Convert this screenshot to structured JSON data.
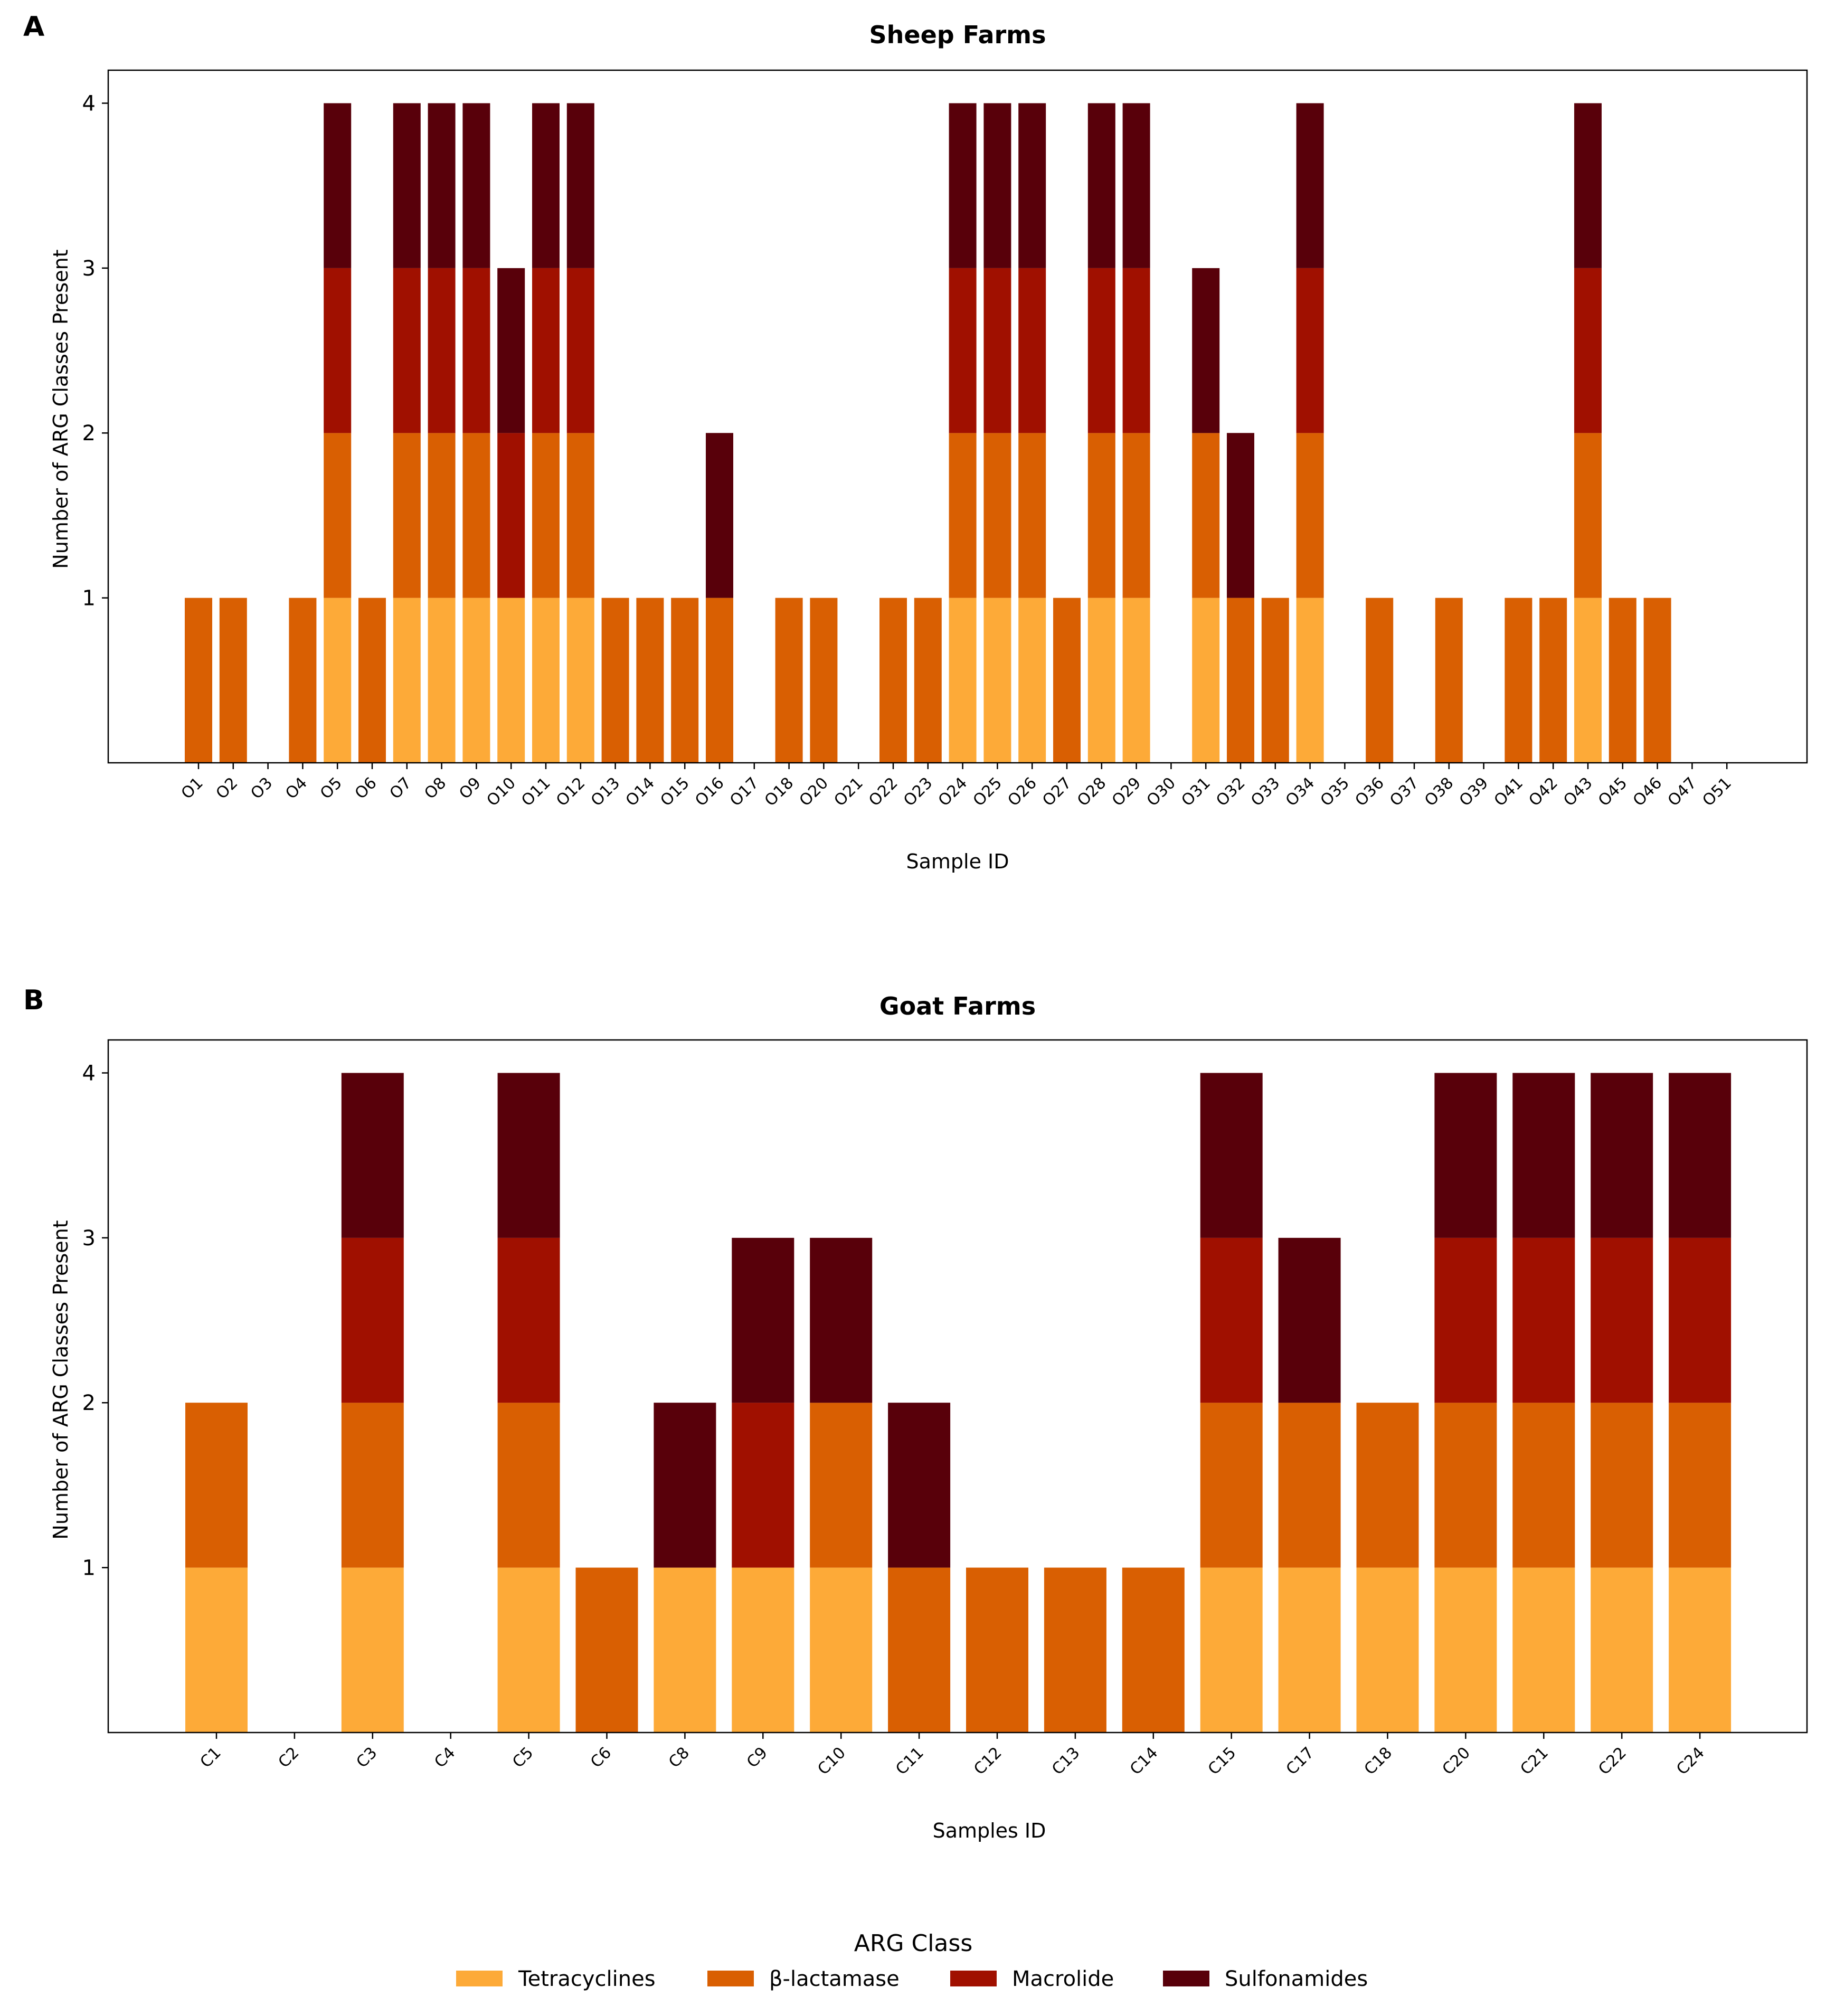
{
  "colors": {
    "Tetracyclines": "#fdaa38",
    "β-lactamase": "#d95f02",
    "Macrolide": "#a01000",
    "Sulfonamides": "#58000a"
  },
  "legend": {
    "title": "ARG Class",
    "entries": [
      "Tetracyclines",
      "β-lactamase",
      "Macrolide",
      "Sulfonamides"
    ],
    "placement": "bottom-center"
  },
  "panels": [
    {
      "letter": "A",
      "title": "Sheep Farms"
    },
    {
      "letter": "B",
      "title": "Goat Farms"
    }
  ],
  "chart_data": [
    {
      "type": "bar",
      "stacked": true,
      "title": "Sheep Farms",
      "xlabel": "Sample ID",
      "ylabel": "Number of ARG Classes Present",
      "ylim": [
        0,
        4.2
      ],
      "yticks": [
        1,
        2,
        3,
        4
      ],
      "grid": false,
      "categories": [
        "O1",
        "O2",
        "O3",
        "O4",
        "O5",
        "O6",
        "O7",
        "O8",
        "O9",
        "O10",
        "O11",
        "O12",
        "O13",
        "O14",
        "O15",
        "O16",
        "O17",
        "O18",
        "O20",
        "O21",
        "O22",
        "O23",
        "O24",
        "O25",
        "O26",
        "O27",
        "O28",
        "O29",
        "O30",
        "O31",
        "O32",
        "O33",
        "O34",
        "O35",
        "O36",
        "O37",
        "O38",
        "O39",
        "O41",
        "O42",
        "O43",
        "O45",
        "O46",
        "O47",
        "O51"
      ],
      "series": [
        {
          "name": "Tetracyclines",
          "values": [
            0,
            0,
            0,
            0,
            1,
            0,
            1,
            1,
            1,
            1,
            1,
            1,
            0,
            0,
            0,
            0,
            0,
            0,
            0,
            0,
            0,
            0,
            1,
            1,
            1,
            0,
            1,
            1,
            0,
            1,
            0,
            0,
            1,
            0,
            0,
            0,
            0,
            0,
            0,
            0,
            1,
            0,
            0,
            0,
            0
          ]
        },
        {
          "name": "β-lactamase",
          "values": [
            1,
            1,
            0,
            1,
            1,
            1,
            1,
            1,
            1,
            0,
            1,
            1,
            1,
            1,
            1,
            1,
            0,
            1,
            1,
            0,
            1,
            1,
            1,
            1,
            1,
            1,
            1,
            1,
            0,
            1,
            1,
            1,
            1,
            0,
            1,
            0,
            1,
            0,
            1,
            1,
            1,
            1,
            1,
            0,
            0
          ]
        },
        {
          "name": "Macrolide",
          "values": [
            0,
            0,
            0,
            0,
            1,
            0,
            1,
            1,
            1,
            1,
            1,
            1,
            0,
            0,
            0,
            0,
            0,
            0,
            0,
            0,
            0,
            0,
            1,
            1,
            1,
            0,
            1,
            1,
            0,
            0,
            0,
            0,
            1,
            0,
            0,
            0,
            0,
            0,
            0,
            0,
            1,
            0,
            0,
            0,
            0
          ]
        },
        {
          "name": "Sulfonamides",
          "values": [
            0,
            0,
            0,
            0,
            1,
            0,
            1,
            1,
            1,
            1,
            1,
            1,
            0,
            0,
            0,
            1,
            0,
            0,
            0,
            0,
            0,
            0,
            1,
            1,
            1,
            0,
            1,
            1,
            0,
            1,
            1,
            0,
            1,
            0,
            0,
            0,
            0,
            0,
            0,
            0,
            1,
            0,
            0,
            0,
            0
          ]
        }
      ]
    },
    {
      "type": "bar",
      "stacked": true,
      "title": "Goat Farms",
      "xlabel": "Samples ID",
      "ylabel": "Number of ARG Classes Present",
      "ylim": [
        0,
        4.2
      ],
      "yticks": [
        1,
        2,
        3,
        4
      ],
      "grid": false,
      "categories": [
        "C1",
        "C2",
        "C3",
        "C4",
        "C5",
        "C6",
        "C8",
        "C9",
        "C10",
        "C11",
        "C12",
        "C13",
        "C14",
        "C15",
        "C17",
        "C18",
        "C20",
        "C21",
        "C22",
        "C24"
      ],
      "series": [
        {
          "name": "Tetracyclines",
          "values": [
            1,
            0,
            1,
            0,
            1,
            0,
            1,
            1,
            1,
            0,
            0,
            0,
            0,
            1,
            1,
            1,
            1,
            1,
            1,
            1
          ]
        },
        {
          "name": "β-lactamase",
          "values": [
            1,
            0,
            1,
            0,
            1,
            1,
            0,
            0,
            1,
            1,
            1,
            1,
            1,
            1,
            1,
            1,
            1,
            1,
            1,
            1
          ]
        },
        {
          "name": "Macrolide",
          "values": [
            0,
            0,
            1,
            0,
            1,
            0,
            0,
            1,
            0,
            0,
            0,
            0,
            0,
            1,
            0,
            0,
            1,
            1,
            1,
            1
          ]
        },
        {
          "name": "Sulfonamides",
          "values": [
            0,
            0,
            1,
            0,
            1,
            0,
            1,
            1,
            1,
            1,
            0,
            0,
            0,
            1,
            1,
            0,
            1,
            1,
            1,
            1
          ]
        }
      ]
    }
  ]
}
